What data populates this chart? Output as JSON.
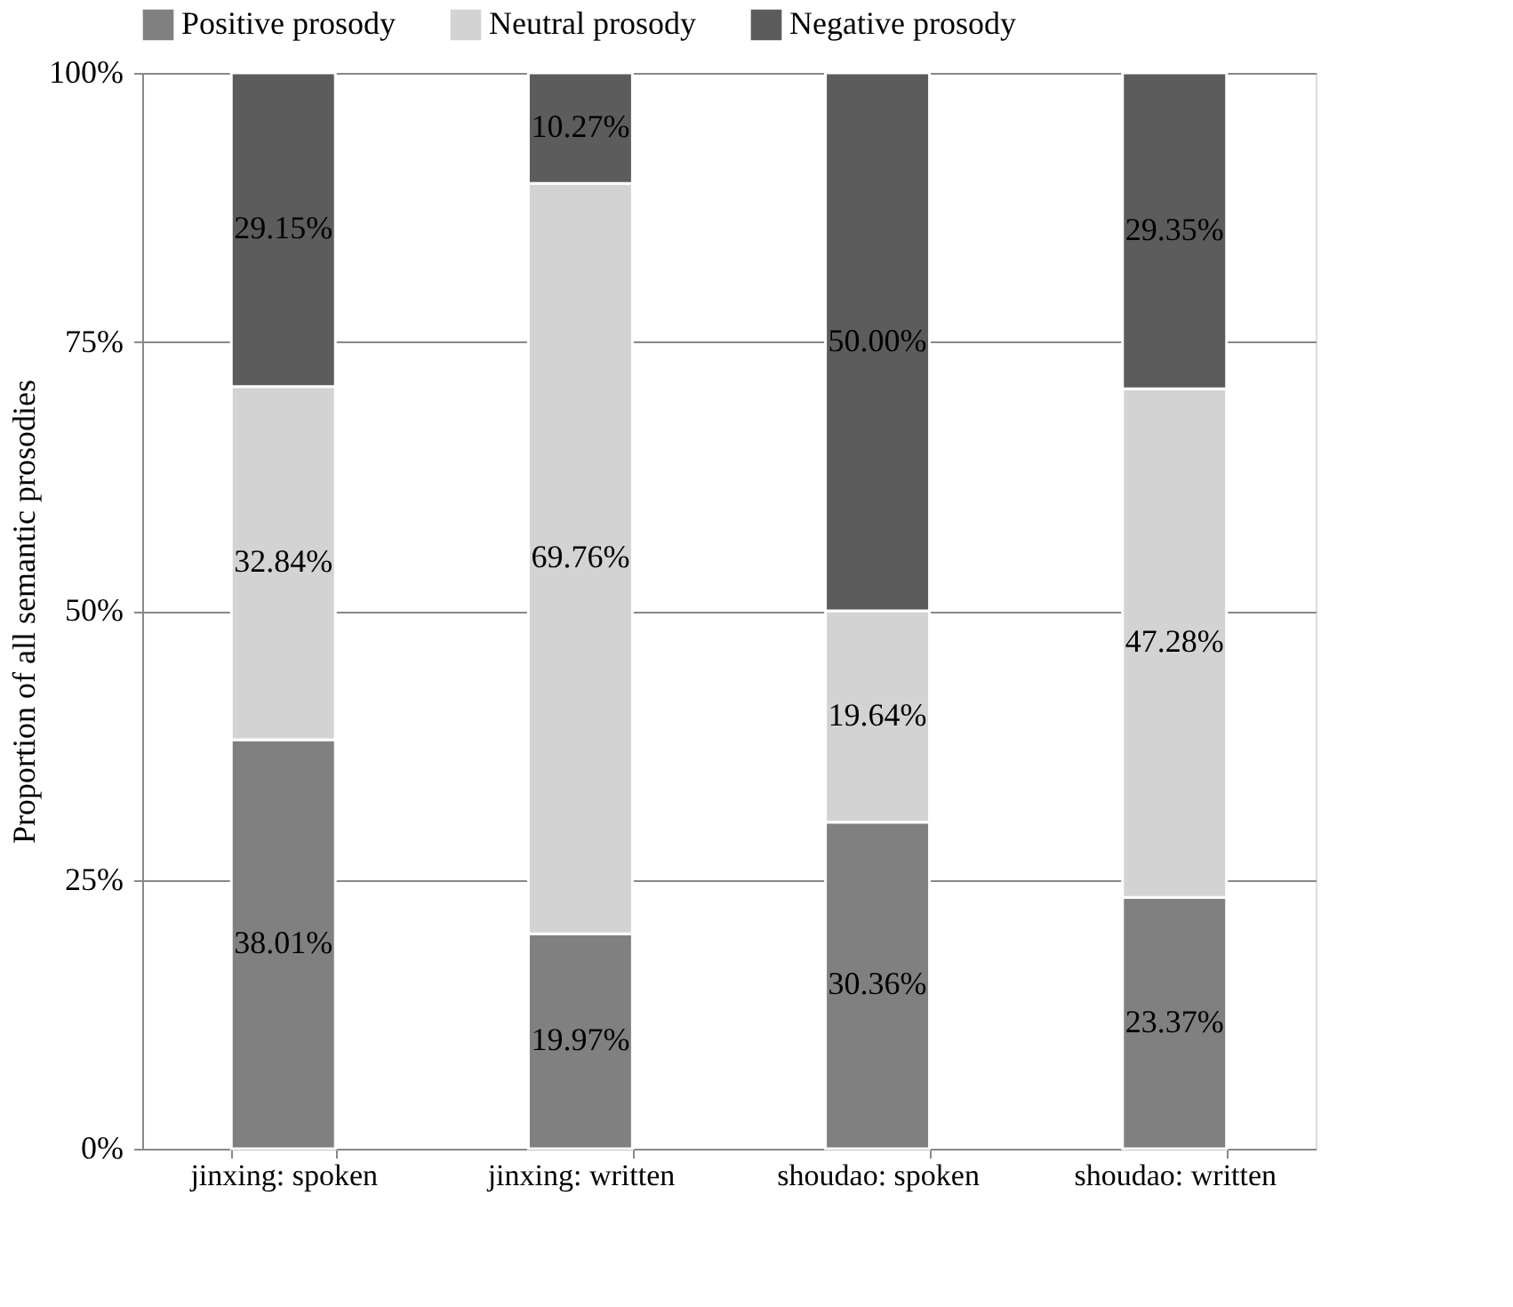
{
  "chart_data": {
    "type": "bar",
    "stacked": true,
    "ylabel": "Proportion of all semantic prosodies",
    "categories": [
      "jinxing: spoken",
      "jinxing: written",
      "shoudao: spoken",
      "shoudao: written"
    ],
    "series": [
      {
        "name": "Positive prosody",
        "color": "#808080",
        "values": [
          38.01,
          19.97,
          30.36,
          23.37
        ],
        "value_labels": [
          "38.01%",
          "19.97%",
          "30.36%",
          "23.37%"
        ]
      },
      {
        "name": "Neutral prosody",
        "color": "#d3d3d3",
        "values": [
          32.84,
          69.76,
          19.64,
          47.28
        ],
        "value_labels": [
          "32.84%",
          "69.76%",
          "19.64%",
          "47.28%"
        ]
      },
      {
        "name": "Negative prosody",
        "color": "#5c5c5c",
        "values": [
          29.15,
          10.27,
          50.0,
          29.35
        ],
        "value_labels": [
          "29.15%",
          "10.27%",
          "50.00%",
          "29.35%"
        ]
      }
    ],
    "ylim": [
      0,
      100
    ],
    "yticks": [
      {
        "value": 0,
        "label": "0%"
      },
      {
        "value": 25,
        "label": "25%"
      },
      {
        "value": 50,
        "label": "50%"
      },
      {
        "value": 75,
        "label": "75%"
      },
      {
        "value": 100,
        "label": "100%"
      }
    ],
    "grid": "y",
    "legend": "top"
  }
}
